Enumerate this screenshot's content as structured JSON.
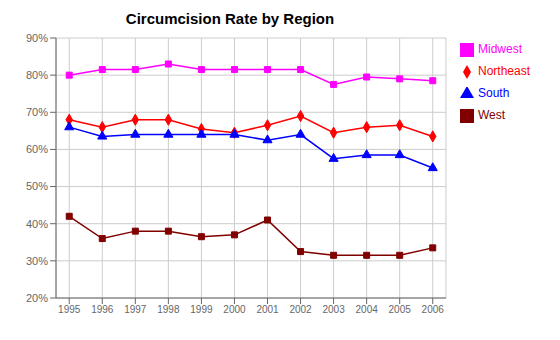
{
  "chart_data": {
    "type": "line",
    "title": "Circumcision Rate by Region",
    "x": [
      1995,
      1996,
      1997,
      1998,
      1999,
      2000,
      2001,
      2002,
      2003,
      2004,
      2005,
      2006
    ],
    "series": [
      {
        "name": "Northeast",
        "color": "#FF0000",
        "marker": "diamond",
        "values": [
          0.68,
          0.66,
          0.68,
          0.68,
          0.655,
          0.645,
          0.665,
          0.69,
          0.645,
          0.66,
          0.665,
          0.635
        ]
      },
      {
        "name": "Midwest",
        "color": "#FF00FF",
        "marker": "square",
        "values": [
          0.8,
          0.815,
          0.815,
          0.83,
          0.815,
          0.815,
          0.815,
          0.815,
          0.775,
          0.795,
          0.79,
          0.785
        ]
      },
      {
        "name": "South",
        "color": "#0000FF",
        "marker": "triangle",
        "values": [
          0.66,
          0.635,
          0.64,
          0.64,
          0.64,
          0.64,
          0.625,
          0.64,
          0.575,
          0.585,
          0.585,
          0.55
        ]
      },
      {
        "name": "West",
        "color": "#800000",
        "marker": "square",
        "values": [
          0.42,
          0.36,
          0.38,
          0.38,
          0.365,
          0.37,
          0.41,
          0.325,
          0.315,
          0.315,
          0.315,
          0.335
        ]
      }
    ],
    "xlim": [
      1994.6,
      2006.4
    ],
    "xticks": [
      1995,
      1996,
      1997,
      1998,
      1999,
      2000,
      2001,
      2002,
      2003,
      2004,
      2005,
      2006
    ],
    "ylim": [
      0.2,
      0.9
    ],
    "yticks": [
      {
        "value": 0.2,
        "label": "20%"
      },
      {
        "value": 0.3,
        "label": "30%"
      },
      {
        "value": 0.4,
        "label": "40%"
      },
      {
        "value": 0.5,
        "label": "50%"
      },
      {
        "value": 0.6,
        "label": "60%"
      },
      {
        "value": 0.7,
        "label": "70%"
      },
      {
        "value": 0.8,
        "label": "80%"
      },
      {
        "value": 0.9,
        "label": "90%"
      }
    ],
    "grid": true,
    "legend": "right"
  }
}
